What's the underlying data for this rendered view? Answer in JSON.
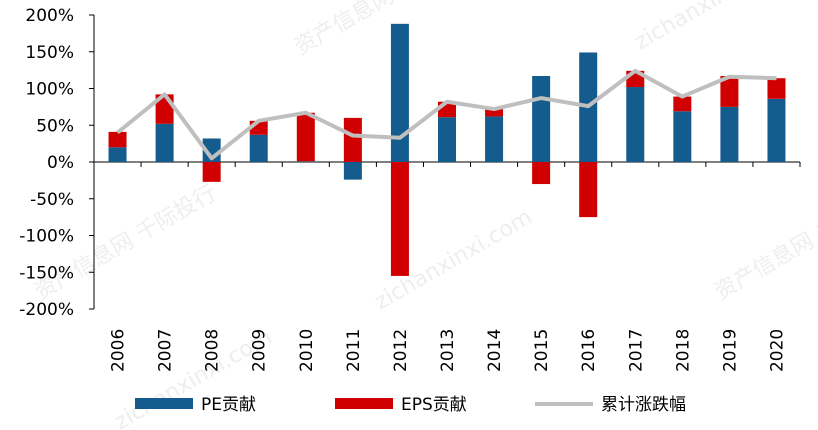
{
  "chart_data": {
    "type": "bar",
    "stacked": true,
    "categories": [
      "2006",
      "2007",
      "2008",
      "2009",
      "2010",
      "2011",
      "2012",
      "2013",
      "2014",
      "2015",
      "2016",
      "2017",
      "2018",
      "2019",
      "2020"
    ],
    "series": [
      {
        "name": "PE贡献",
        "kind": "bar",
        "color": "#145B8E",
        "values": [
          20,
          52,
          32,
          37,
          1,
          -24,
          188,
          61,
          62,
          117,
          149,
          102,
          69,
          75,
          86
        ]
      },
      {
        "name": "EPS贡献",
        "kind": "bar",
        "color": "#D10000",
        "values": [
          21,
          40,
          -27,
          19,
          66,
          60,
          -155,
          21,
          10,
          -30,
          -75,
          22,
          20,
          42,
          28
        ]
      },
      {
        "name": "累计涨跌幅",
        "kind": "line",
        "color": "#BFBFBF",
        "values": [
          40,
          92,
          5,
          56,
          67,
          36,
          33,
          82,
          72,
          87,
          76,
          124,
          89,
          116,
          114
        ]
      }
    ],
    "y_ticks": [
      "200%",
      "150%",
      "100%",
      "50%",
      "0%",
      "-50%",
      "-100%",
      "-150%",
      "-200%"
    ],
    "ylim": [
      -200,
      200
    ],
    "grid": false,
    "legend_position": "bottom",
    "title": "",
    "xlabel": "",
    "ylabel": ""
  },
  "watermarks": [
    "资产信息网 千际投行",
    "zichanxinxi.com"
  ]
}
